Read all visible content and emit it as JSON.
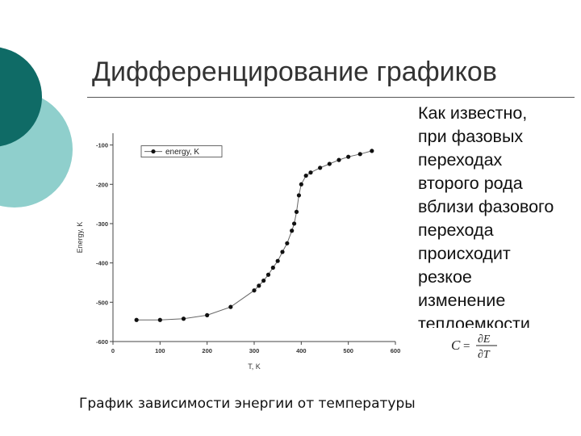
{
  "slide": {
    "title": "Дифференцирование графиков",
    "body_lines": [
      "Как известно,",
      "при фазовых",
      "переходах",
      "второго  рода",
      "вблизи фазового",
      "перехода",
      "происходит",
      "резкое",
      "изменение",
      "теплоемкости"
    ],
    "formula": {
      "lhs": "C",
      "eq": "=",
      "numerator": "∂E",
      "denominator": "∂T"
    },
    "caption": "График зависимости энергии от температуры"
  },
  "colors": {
    "teal_dark": "#0f6b66",
    "teal_light": "#8fcfcc",
    "line": "#666666",
    "marker": "#111111"
  },
  "chart_data": {
    "type": "line",
    "xlabel": "T, K",
    "ylabel": "Energy, K",
    "xlim": [
      0,
      600
    ],
    "ylim": [
      -600,
      -70
    ],
    "xticks": [
      0,
      100,
      200,
      300,
      400,
      500,
      600
    ],
    "xtick_labels": [
      "0",
      "100",
      "200",
      "300",
      "400",
      "500",
      "600"
    ],
    "yticks": [
      -100,
      -200,
      -300,
      -400,
      -500,
      -600
    ],
    "ytick_labels": [
      "-100",
      "-200",
      "-300",
      "-400",
      "-500",
      "-600"
    ],
    "legend": {
      "position": "top-left",
      "label": "energy, K"
    },
    "series": [
      {
        "name": "energy, K",
        "x": [
          50,
          100,
          150,
          200,
          250,
          300,
          310,
          320,
          330,
          340,
          350,
          360,
          370,
          380,
          385,
          390,
          395,
          400,
          410,
          420,
          440,
          460,
          480,
          500,
          525,
          550
        ],
        "y": [
          -545,
          -545,
          -542,
          -533,
          -512,
          -470,
          -458,
          -445,
          -430,
          -412,
          -395,
          -372,
          -350,
          -318,
          -300,
          -270,
          -228,
          -200,
          -178,
          -170,
          -158,
          -148,
          -138,
          -130,
          -123,
          -115
        ]
      }
    ]
  }
}
